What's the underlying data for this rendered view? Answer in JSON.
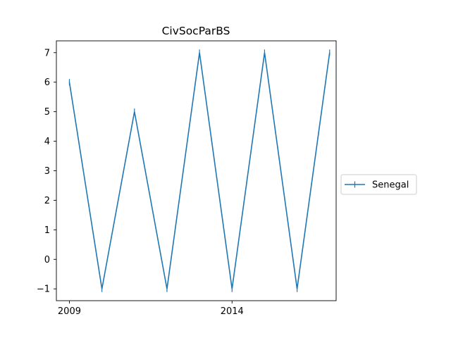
{
  "chart_data": {
    "type": "line",
    "title": "CivSocParBS",
    "xlabel": "",
    "ylabel": "",
    "x": [
      2009,
      2010,
      2011,
      2012,
      2013,
      2014,
      2015,
      2016,
      2017
    ],
    "series": [
      {
        "name": "Senegal",
        "values": [
          6,
          -1,
          5,
          -1,
          7,
          -1,
          7,
          -1,
          7
        ],
        "color": "#1f77b4"
      }
    ],
    "xticks": [
      2009,
      2014
    ],
    "xtick_labels": [
      "2009",
      "2014"
    ],
    "yticks": [
      -1,
      0,
      1,
      2,
      3,
      4,
      5,
      6,
      7
    ],
    "ytick_labels": [
      "−1",
      "0",
      "1",
      "2",
      "3",
      "4",
      "5",
      "6",
      "7"
    ],
    "xlim": [
      2008.6,
      2017.2
    ],
    "ylim": [
      -1.4,
      7.4
    ],
    "grid": false,
    "legend_position": "outside-right"
  }
}
